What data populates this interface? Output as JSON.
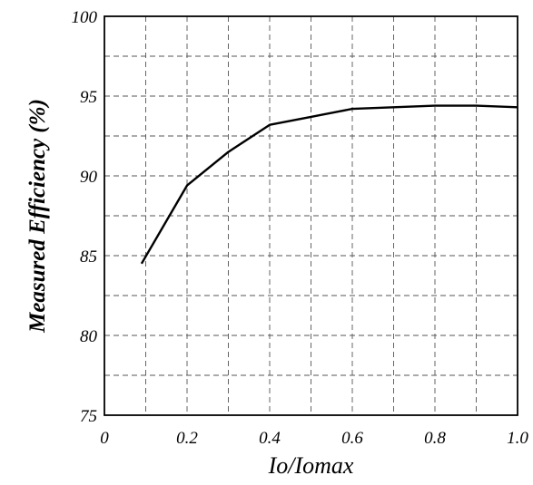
{
  "chart_data": {
    "type": "line",
    "title": "",
    "xlabel": "Io/Iomax",
    "ylabel": "Measured Efficiency (%)",
    "xlim": [
      0,
      1.0
    ],
    "ylim": [
      75,
      100
    ],
    "x_ticks": [
      0,
      0.2,
      0.4,
      0.6,
      0.8,
      1.0
    ],
    "x_tick_labels": [
      "0",
      "0.2",
      "0.4",
      "0.6",
      "0.8",
      "1.0"
    ],
    "y_ticks": [
      75,
      80,
      85,
      90,
      95,
      100
    ],
    "y_tick_labels": [
      "75",
      "80",
      "85",
      "90",
      "95",
      "100"
    ],
    "x_grid": [
      0,
      0.1,
      0.2,
      0.3,
      0.4,
      0.5,
      0.6,
      0.7,
      0.8,
      0.9,
      1.0
    ],
    "y_grid": [
      75,
      77.5,
      80,
      82.5,
      85,
      87.5,
      90,
      92.5,
      95,
      97.5,
      100
    ],
    "grid": true,
    "series": [
      {
        "x": [
          0.09,
          0.2,
          0.3,
          0.4,
          0.5,
          0.6,
          0.7,
          0.8,
          0.9,
          1.0
        ],
        "y": [
          84.5,
          89.4,
          91.5,
          93.2,
          93.7,
          94.2,
          94.3,
          94.4,
          94.4,
          94.3
        ]
      }
    ]
  }
}
